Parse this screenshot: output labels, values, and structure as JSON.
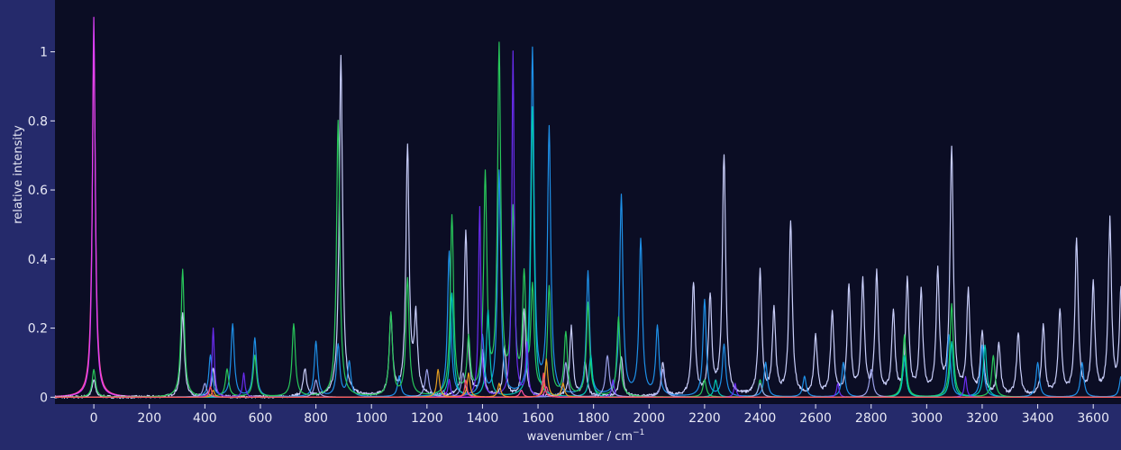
{
  "chart_data": {
    "type": "line",
    "title": "",
    "xlabel": "wavenumber / cm",
    "xlabel_superscript": "−1",
    "ylabel": "relative intensity",
    "xlim": [
      -140,
      3700
    ],
    "ylim": [
      -0.02,
      1.15
    ],
    "x_ticks": [
      0,
      200,
      400,
      600,
      800,
      1000,
      1200,
      1400,
      1600,
      1800,
      2000,
      2200,
      2400,
      2600,
      2800,
      3000,
      3200,
      3400,
      3600
    ],
    "y_ticks": [
      0,
      0.2,
      0.4,
      0.6,
      0.8,
      1
    ],
    "y_tick_labels": [
      "0",
      "0.2",
      "0.4",
      "0.6",
      "0.8",
      "1"
    ],
    "grid": false,
    "legend": "none",
    "colors": {
      "background": "#252a6b",
      "plot_area": "#0b0d24",
      "text": "#e8e9f5"
    },
    "series": [
      {
        "color": "#ff4fa0",
        "width": 14,
        "peaks": [
          [
            0,
            1.0
          ],
          [
            1630,
            0.03
          ],
          [
            1540,
            0.02
          ]
        ]
      },
      {
        "color": "#e040fb",
        "width": 12,
        "peaks": [
          [
            0,
            1.1
          ],
          [
            1620,
            0.05
          ],
          [
            1260,
            0.02
          ]
        ]
      },
      {
        "color": "#c8cdf8",
        "width": 14,
        "noise": 0.008,
        "peaks": [
          [
            0,
            0.05
          ],
          [
            320,
            0.25
          ],
          [
            430,
            0.08
          ],
          [
            760,
            0.08
          ],
          [
            890,
            1.0
          ],
          [
            1070,
            0.23
          ],
          [
            1130,
            0.71
          ],
          [
            1160,
            0.22
          ],
          [
            1340,
            0.48
          ],
          [
            1400,
            0.13
          ],
          [
            1480,
            0.14
          ],
          [
            1550,
            0.25
          ],
          [
            1720,
            0.2
          ],
          [
            1770,
            0.1
          ],
          [
            1900,
            0.12
          ],
          [
            2050,
            0.1
          ],
          [
            2160,
            0.33
          ],
          [
            2220,
            0.28
          ],
          [
            2270,
            0.7
          ],
          [
            2400,
            0.36
          ],
          [
            2450,
            0.25
          ],
          [
            2510,
            0.5
          ],
          [
            2600,
            0.17
          ],
          [
            2660,
            0.24
          ],
          [
            2720,
            0.32
          ],
          [
            2770,
            0.33
          ],
          [
            2820,
            0.35
          ],
          [
            2880,
            0.24
          ],
          [
            2930,
            0.33
          ],
          [
            2980,
            0.3
          ],
          [
            3040,
            0.35
          ],
          [
            3090,
            0.72
          ],
          [
            3150,
            0.3
          ],
          [
            3200,
            0.18
          ],
          [
            3260,
            0.15
          ],
          [
            3330,
            0.18
          ],
          [
            3420,
            0.2
          ],
          [
            3480,
            0.25
          ],
          [
            3540,
            0.45
          ],
          [
            3600,
            0.32
          ],
          [
            3660,
            0.5
          ],
          [
            3700,
            0.3
          ]
        ]
      },
      {
        "color": "#1e90e8",
        "width": 14,
        "peaks": [
          [
            420,
            0.12
          ],
          [
            500,
            0.21
          ],
          [
            580,
            0.17
          ],
          [
            800,
            0.16
          ],
          [
            880,
            0.15
          ],
          [
            920,
            0.1
          ],
          [
            1100,
            0.06
          ],
          [
            1280,
            0.42
          ],
          [
            1400,
            0.17
          ],
          [
            1460,
            0.65
          ],
          [
            1580,
            1.0
          ],
          [
            1640,
            0.77
          ],
          [
            1780,
            0.36
          ],
          [
            1900,
            0.58
          ],
          [
            1970,
            0.45
          ],
          [
            2030,
            0.2
          ],
          [
            2200,
            0.28
          ],
          [
            2270,
            0.15
          ],
          [
            2420,
            0.1
          ],
          [
            2560,
            0.06
          ],
          [
            2700,
            0.1
          ],
          [
            2920,
            0.12
          ],
          [
            3080,
            0.18
          ],
          [
            3200,
            0.15
          ],
          [
            3400,
            0.1
          ],
          [
            3560,
            0.1
          ],
          [
            3700,
            0.06
          ]
        ]
      },
      {
        "color": "#28c85a",
        "width": 14,
        "peaks": [
          [
            0,
            0.08
          ],
          [
            320,
            0.37
          ],
          [
            480,
            0.08
          ],
          [
            580,
            0.12
          ],
          [
            720,
            0.21
          ],
          [
            880,
            0.8
          ],
          [
            1070,
            0.24
          ],
          [
            1130,
            0.34
          ],
          [
            1290,
            0.52
          ],
          [
            1350,
            0.16
          ],
          [
            1410,
            0.63
          ],
          [
            1460,
            1.0
          ],
          [
            1510,
            0.52
          ],
          [
            1550,
            0.33
          ],
          [
            1580,
            0.3
          ],
          [
            1640,
            0.31
          ],
          [
            1700,
            0.18
          ],
          [
            1780,
            0.27
          ],
          [
            1890,
            0.23
          ],
          [
            2200,
            0.05
          ],
          [
            2400,
            0.05
          ],
          [
            2920,
            0.18
          ],
          [
            3090,
            0.27
          ],
          [
            3240,
            0.12
          ]
        ]
      },
      {
        "color": "#00c8b4",
        "width": 14,
        "peaks": [
          [
            1290,
            0.3
          ],
          [
            1420,
            0.25
          ],
          [
            1580,
            0.84
          ],
          [
            1790,
            0.12
          ],
          [
            2240,
            0.05
          ],
          [
            2920,
            0.12
          ],
          [
            3090,
            0.16
          ],
          [
            3210,
            0.15
          ]
        ]
      },
      {
        "color": "#6a2cf0",
        "width": 10,
        "peaks": [
          [
            430,
            0.2
          ],
          [
            540,
            0.07
          ],
          [
            1280,
            0.05
          ],
          [
            1390,
            0.55
          ],
          [
            1510,
            1.0
          ],
          [
            1560,
            0.15
          ],
          [
            1870,
            0.05
          ],
          [
            2310,
            0.04
          ],
          [
            2680,
            0.04
          ],
          [
            3140,
            0.06
          ]
        ]
      },
      {
        "color": "#9aa0e8",
        "width": 16,
        "peaks": [
          [
            400,
            0.04
          ],
          [
            800,
            0.05
          ],
          [
            1200,
            0.08
          ],
          [
            1330,
            0.07
          ],
          [
            1700,
            0.1
          ],
          [
            1850,
            0.12
          ],
          [
            2050,
            0.08
          ],
          [
            2400,
            0.04
          ],
          [
            2800,
            0.08
          ]
        ]
      },
      {
        "color": "#e8a020",
        "width": 12,
        "peaks": [
          [
            430,
            0.02
          ],
          [
            1240,
            0.08
          ],
          [
            1350,
            0.07
          ],
          [
            1460,
            0.04
          ],
          [
            1630,
            0.11
          ],
          [
            1690,
            0.04
          ]
        ]
      },
      {
        "color": "#ff5060",
        "width": 10,
        "peaks": [
          [
            420,
            0.03
          ],
          [
            1340,
            0.05
          ],
          [
            1620,
            0.07
          ]
        ]
      }
    ]
  }
}
